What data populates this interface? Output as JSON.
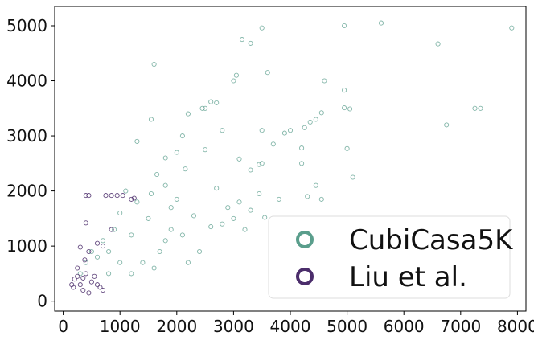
{
  "chart_data": {
    "type": "scatter",
    "title": "",
    "xlabel": "",
    "ylabel": "",
    "xlim": [
      -150,
      8150
    ],
    "ylim": [
      -180,
      5350
    ],
    "xticks": [
      0,
      1000,
      2000,
      3000,
      4000,
      5000,
      6000,
      7000,
      8000
    ],
    "xtick_labels": [
      "0",
      "1000",
      "2000",
      "3000",
      "4000",
      "5000",
      "6000",
      "7000",
      "8000"
    ],
    "yticks": [
      0,
      1000,
      2000,
      3000,
      4000,
      5000
    ],
    "ytick_labels": [
      "0",
      "1000",
      "2000",
      "3000",
      "4000",
      "5000"
    ],
    "grid": false,
    "legend_position": "lower-right",
    "colors": {
      "cubicasa": "#5a9e8c",
      "liu": "#4b2d6b",
      "axes": "#000000"
    },
    "series": [
      {
        "name": "CubiCasa5K",
        "color": "#5a9e8c",
        "points": [
          [
            5600,
            5050
          ],
          [
            4950,
            5000
          ],
          [
            7900,
            4960
          ],
          [
            3500,
            4960
          ],
          [
            3150,
            4750
          ],
          [
            3300,
            4680
          ],
          [
            6600,
            4670
          ],
          [
            1600,
            4300
          ],
          [
            3600,
            4150
          ],
          [
            3050,
            4100
          ],
          [
            3000,
            4000
          ],
          [
            4600,
            4000
          ],
          [
            4950,
            3830
          ],
          [
            2600,
            3620
          ],
          [
            2700,
            3600
          ],
          [
            2450,
            3500
          ],
          [
            2500,
            3500
          ],
          [
            4950,
            3510
          ],
          [
            5050,
            3490
          ],
          [
            7250,
            3500
          ],
          [
            7350,
            3500
          ],
          [
            4550,
            3420
          ],
          [
            2200,
            3400
          ],
          [
            4450,
            3300
          ],
          [
            1550,
            3300
          ],
          [
            4350,
            3250
          ],
          [
            4000,
            3100
          ],
          [
            4250,
            3150
          ],
          [
            6750,
            3200
          ],
          [
            3900,
            3050
          ],
          [
            3500,
            3100
          ],
          [
            2800,
            3100
          ],
          [
            2100,
            3000
          ],
          [
            1300,
            2900
          ],
          [
            3700,
            2850
          ],
          [
            4200,
            2780
          ],
          [
            5000,
            2770
          ],
          [
            2500,
            2750
          ],
          [
            2000,
            2700
          ],
          [
            1800,
            2600
          ],
          [
            3100,
            2580
          ],
          [
            3500,
            2500
          ],
          [
            3450,
            2480
          ],
          [
            4200,
            2500
          ],
          [
            3300,
            2380
          ],
          [
            5100,
            2250
          ],
          [
            4450,
            2100
          ],
          [
            2700,
            2050
          ],
          [
            4300,
            1900
          ],
          [
            3450,
            1950
          ],
          [
            3800,
            1850
          ],
          [
            3100,
            1800
          ],
          [
            4550,
            1850
          ],
          [
            2900,
            1700
          ],
          [
            3300,
            1650
          ],
          [
            3550,
            1520
          ],
          [
            3200,
            1300
          ],
          [
            2800,
            1400
          ],
          [
            3000,
            1500
          ],
          [
            2000,
            1850
          ],
          [
            2300,
            1550
          ],
          [
            2600,
            1350
          ],
          [
            2150,
            2400
          ],
          [
            1800,
            2100
          ],
          [
            1650,
            2300
          ],
          [
            1900,
            1700
          ],
          [
            1550,
            1950
          ],
          [
            2100,
            1200
          ],
          [
            2400,
            900
          ],
          [
            2200,
            700
          ],
          [
            1900,
            1300
          ],
          [
            1700,
            900
          ],
          [
            1500,
            1500
          ],
          [
            1300,
            1800
          ],
          [
            1200,
            1200
          ],
          [
            1400,
            700
          ],
          [
            1100,
            2000
          ],
          [
            1000,
            1600
          ],
          [
            900,
            1300
          ],
          [
            800,
            900
          ],
          [
            700,
            1100
          ],
          [
            600,
            800
          ],
          [
            500,
            900
          ],
          [
            400,
            700
          ],
          [
            300,
            500
          ],
          [
            1000,
            700
          ],
          [
            1200,
            500
          ],
          [
            1600,
            600
          ],
          [
            800,
            500
          ],
          [
            1800,
            1100
          ]
        ]
      },
      {
        "name": "Liu et al.",
        "color": "#4b2d6b",
        "points": [
          [
            400,
            1920
          ],
          [
            450,
            1920
          ],
          [
            750,
            1920
          ],
          [
            850,
            1920
          ],
          [
            950,
            1920
          ],
          [
            1050,
            1920
          ],
          [
            1250,
            1870
          ],
          [
            1200,
            1850
          ],
          [
            400,
            1420
          ],
          [
            850,
            1300
          ],
          [
            700,
            1000
          ],
          [
            600,
            1050
          ],
          [
            300,
            980
          ],
          [
            450,
            900
          ],
          [
            380,
            750
          ],
          [
            250,
            600
          ],
          [
            200,
            400
          ],
          [
            180,
            250
          ],
          [
            300,
            300
          ],
          [
            350,
            200
          ],
          [
            450,
            150
          ],
          [
            500,
            350
          ],
          [
            400,
            500
          ],
          [
            550,
            450
          ],
          [
            600,
            300
          ],
          [
            650,
            250
          ],
          [
            250,
            450
          ],
          [
            350,
            420
          ],
          [
            150,
            300
          ],
          [
            700,
            200
          ]
        ]
      }
    ]
  }
}
